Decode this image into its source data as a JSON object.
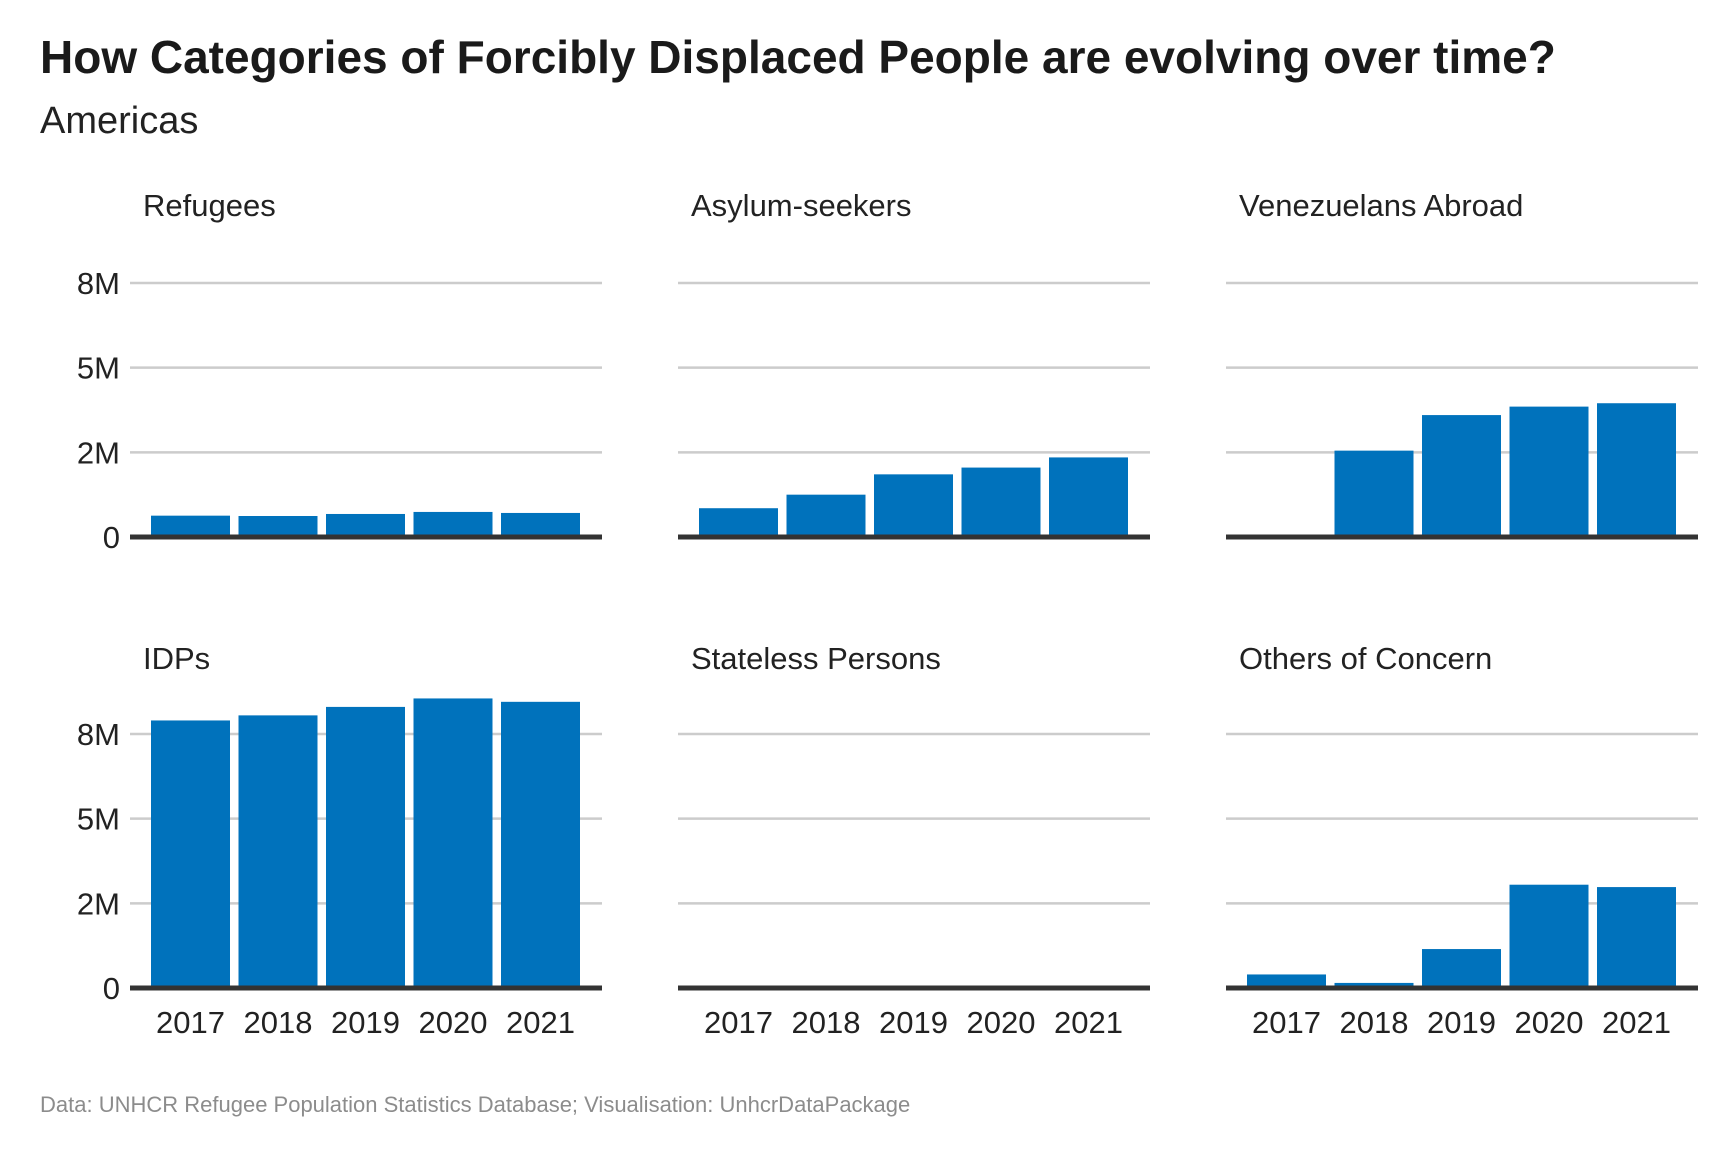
{
  "header": {
    "title": "How Categories of Forcibly Displaced People are evolving over time?",
    "subtitle": "Americas"
  },
  "caption": "Data: UNHCR Refugee Population Statistics Database; Visualisation: UnhcrDataPackage",
  "colors": {
    "bar": "#0072bc",
    "grid": "#cccccc",
    "baseline": "#333333"
  },
  "chart_data": [
    {
      "type": "bar",
      "title": "Refugees",
      "categories": [
        "2017",
        "2018",
        "2019",
        "2020",
        "2021"
      ],
      "values": [
        630000,
        620000,
        680000,
        740000,
        710000
      ],
      "yticks": [
        0,
        2500000,
        5000000,
        7500000
      ],
      "ytick_labels": [
        "0",
        "2M",
        "5M",
        "8M"
      ],
      "ylim": [
        0,
        7500000
      ],
      "grid": true
    },
    {
      "type": "bar",
      "title": "Asylum-seekers",
      "categories": [
        "2017",
        "2018",
        "2019",
        "2020",
        "2021"
      ],
      "values": [
        850000,
        1250000,
        1850000,
        2050000,
        2350000
      ],
      "yticks": [
        0,
        2500000,
        5000000,
        7500000
      ],
      "ytick_labels": [
        "0",
        "2M",
        "5M",
        "8M"
      ],
      "ylim": [
        0,
        7500000
      ],
      "grid": true
    },
    {
      "type": "bar",
      "title": "Venezuelans Abroad",
      "categories": [
        "2017",
        "2018",
        "2019",
        "2020",
        "2021"
      ],
      "values": [
        0,
        2550000,
        3600000,
        3850000,
        3950000
      ],
      "yticks": [
        0,
        2500000,
        5000000,
        7500000
      ],
      "ytick_labels": [
        "0",
        "2M",
        "5M",
        "8M"
      ],
      "ylim": [
        0,
        7500000
      ],
      "grid": true
    },
    {
      "type": "bar",
      "title": "IDPs",
      "categories": [
        "2017",
        "2018",
        "2019",
        "2020",
        "2021"
      ],
      "values": [
        7900000,
        8050000,
        8300000,
        8550000,
        8450000
      ],
      "yticks": [
        0,
        2500000,
        5000000,
        7500000
      ],
      "ytick_labels": [
        "0",
        "2M",
        "5M",
        "8M"
      ],
      "ylim": [
        0,
        7500000
      ],
      "grid": true
    },
    {
      "type": "bar",
      "title": "Stateless Persons",
      "categories": [
        "2017",
        "2018",
        "2019",
        "2020",
        "2021"
      ],
      "values": [
        0,
        0,
        0,
        0,
        0
      ],
      "yticks": [
        0,
        2500000,
        5000000,
        7500000
      ],
      "ytick_labels": [
        "0",
        "2M",
        "5M",
        "8M"
      ],
      "ylim": [
        0,
        7500000
      ],
      "grid": true
    },
    {
      "type": "bar",
      "title": "Others of Concern",
      "categories": [
        "2017",
        "2018",
        "2019",
        "2020",
        "2021"
      ],
      "values": [
        400000,
        150000,
        1150000,
        3050000,
        2980000
      ],
      "yticks": [
        0,
        2500000,
        5000000,
        7500000
      ],
      "ytick_labels": [
        "0",
        "2M",
        "5M",
        "8M"
      ],
      "ylim": [
        0,
        7500000
      ],
      "grid": true
    }
  ]
}
